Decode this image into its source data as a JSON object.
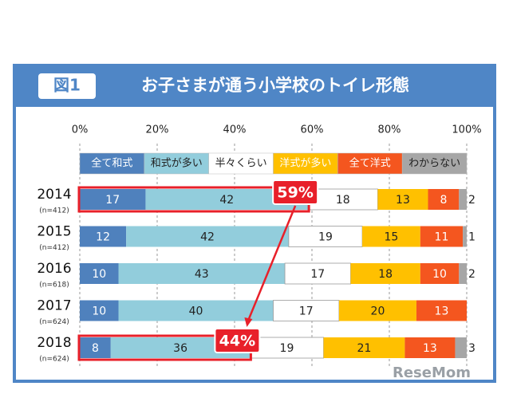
{
  "chart_data": {
    "type": "stacked-bar-horizontal",
    "badge": "図1",
    "title": "お子さまが通う小学校のトイレ形態",
    "categories": [
      "2014",
      "2015",
      "2016",
      "2017",
      "2018"
    ],
    "category_notes": [
      "(n=412)",
      "(n=412)",
      "(n=618)",
      "(n=624)",
      "(n=624)"
    ],
    "series": [
      {
        "name": "全て和式",
        "color": "#4f81bd",
        "values": [
          17,
          12,
          10,
          10,
          8
        ]
      },
      {
        "name": "和式が多い",
        "color": "#92cddc",
        "values": [
          42,
          42,
          43,
          40,
          36
        ]
      },
      {
        "name": "半々くらい",
        "color": "#ffffff",
        "values": [
          18,
          19,
          17,
          17,
          19
        ]
      },
      {
        "name": "洋式が多い",
        "color": "#ffc000",
        "values": [
          13,
          15,
          18,
          20,
          21
        ]
      },
      {
        "name": "全て洋式",
        "color": "#f4561f",
        "values": [
          8,
          11,
          10,
          13,
          13
        ]
      },
      {
        "name": "わからない",
        "color": "#a6a6a6",
        "values": [
          2,
          1,
          2,
          0,
          3
        ]
      }
    ],
    "xlim": [
      0,
      100
    ],
    "xticks": [
      {
        "value": 0,
        "label": "0%"
      },
      {
        "value": 20,
        "label": "20%"
      },
      {
        "value": 40,
        "label": "40%"
      },
      {
        "value": 60,
        "label": "60%"
      },
      {
        "value": 80,
        "label": "80%"
      },
      {
        "value": 100,
        "label": "100%"
      }
    ],
    "grid": true,
    "annotations": [
      {
        "text": "59%",
        "row": 0
      },
      {
        "text": "44%",
        "row": 4
      }
    ],
    "watermark": "ReseMom"
  }
}
